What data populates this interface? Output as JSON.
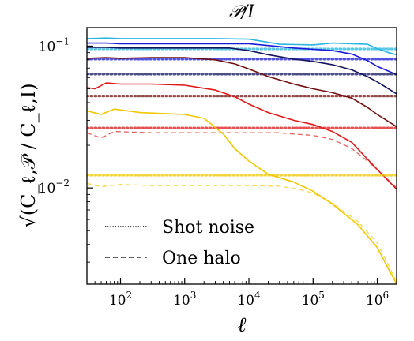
{
  "chart_data": {
    "type": "line",
    "title": "𝒫/I",
    "xlabel": "ℓ",
    "ylabel": "√(C_ℓ,𝒫 / C_ℓ,I)",
    "xscale": "log",
    "yscale": "log",
    "xlim": [
      30,
      2000000
    ],
    "ylim": [
      0.0021,
      0.135
    ],
    "x_ticks": [
      {
        "value": 100,
        "base": "10",
        "exp": "2"
      },
      {
        "value": 1000,
        "base": "10",
        "exp": "3"
      },
      {
        "value": 10000,
        "base": "10",
        "exp": "4"
      },
      {
        "value": 100000,
        "base": "10",
        "exp": "5"
      },
      {
        "value": 1000000,
        "base": "10",
        "exp": "6"
      }
    ],
    "y_ticks": [
      {
        "value": 0.1,
        "base": "10",
        "exp": "−1"
      },
      {
        "value": 0.01,
        "base": "10",
        "exp": "−2"
      }
    ],
    "grid": false,
    "legend": {
      "placement": "lower-left",
      "entries": [
        {
          "label": "Shot noise",
          "style": "dotted"
        },
        {
          "label": "One halo",
          "style": "dashed"
        }
      ]
    },
    "series": [
      {
        "color": "#29b6e0",
        "kind": "total",
        "points": [
          [
            30,
            0.113
          ],
          [
            60,
            0.114
          ],
          [
            100,
            0.113
          ],
          [
            300,
            0.113
          ],
          [
            1000,
            0.113
          ],
          [
            3000,
            0.113
          ],
          [
            10000,
            0.112
          ],
          [
            30000,
            0.103
          ],
          [
            100000,
            0.102
          ],
          [
            200000,
            0.105
          ],
          [
            400000,
            0.104
          ],
          [
            700000,
            0.103
          ],
          [
            1000000,
            0.096
          ],
          [
            1500000,
            0.09
          ],
          [
            2000000,
            0.087
          ]
        ]
      },
      {
        "color": "#29b6e0",
        "kind": "shot_noise",
        "value": 0.0955
      },
      {
        "color": "#1a1ad8",
        "kind": "total",
        "points": [
          [
            30,
            0.105
          ],
          [
            60,
            0.105
          ],
          [
            100,
            0.104
          ],
          [
            300,
            0.104
          ],
          [
            1000,
            0.104
          ],
          [
            3000,
            0.104
          ],
          [
            10000,
            0.104
          ],
          [
            20000,
            0.101
          ],
          [
            50000,
            0.097
          ],
          [
            100000,
            0.095
          ],
          [
            200000,
            0.093
          ],
          [
            400000,
            0.088
          ],
          [
            700000,
            0.079
          ],
          [
            1000000,
            0.072
          ],
          [
            2000000,
            0.063
          ]
        ]
      },
      {
        "color": "#1a1ad8",
        "kind": "shot_noise",
        "value": 0.081
      },
      {
        "color": "#14145e",
        "kind": "total",
        "points": [
          [
            30,
            0.098
          ],
          [
            60,
            0.098
          ],
          [
            100,
            0.097
          ],
          [
            300,
            0.097
          ],
          [
            1000,
            0.097
          ],
          [
            3000,
            0.097
          ],
          [
            5000,
            0.097
          ],
          [
            10000,
            0.093
          ],
          [
            20000,
            0.087
          ],
          [
            50000,
            0.081
          ],
          [
            100000,
            0.078
          ],
          [
            200000,
            0.074
          ],
          [
            400000,
            0.068
          ],
          [
            700000,
            0.061
          ],
          [
            1000000,
            0.056
          ],
          [
            2000000,
            0.046
          ]
        ]
      },
      {
        "color": "#14145e",
        "kind": "shot_noise",
        "value": 0.0635
      },
      {
        "color": "#701010",
        "kind": "total",
        "points": [
          [
            30,
            0.082
          ],
          [
            60,
            0.083
          ],
          [
            100,
            0.082
          ],
          [
            300,
            0.083
          ],
          [
            1000,
            0.083
          ],
          [
            3000,
            0.08
          ],
          [
            6000,
            0.075
          ],
          [
            10000,
            0.069
          ],
          [
            20000,
            0.061
          ],
          [
            50000,
            0.054
          ],
          [
            100000,
            0.05
          ],
          [
            200000,
            0.047
          ],
          [
            400000,
            0.043
          ],
          [
            700000,
            0.037
          ],
          [
            1000000,
            0.033
          ],
          [
            2000000,
            0.027
          ]
        ]
      },
      {
        "color": "#701010",
        "kind": "shot_noise",
        "value": 0.0445
      },
      {
        "color": "#e01818",
        "kind": "total",
        "points": [
          [
            30,
            0.051
          ],
          [
            40,
            0.05
          ],
          [
            60,
            0.055
          ],
          [
            100,
            0.054
          ],
          [
            300,
            0.054
          ],
          [
            1000,
            0.053
          ],
          [
            3000,
            0.049
          ],
          [
            6000,
            0.044
          ],
          [
            10000,
            0.039
          ],
          [
            20000,
            0.034
          ],
          [
            50000,
            0.03
          ],
          [
            100000,
            0.028
          ],
          [
            200000,
            0.025
          ],
          [
            400000,
            0.021
          ],
          [
            700000,
            0.016
          ],
          [
            1000000,
            0.0135
          ],
          [
            2000000,
            0.0098
          ]
        ]
      },
      {
        "color": "#e01818",
        "kind": "shot_noise",
        "value": 0.0265
      },
      {
        "color": "#e01818",
        "kind": "one_halo",
        "points": [
          [
            30,
            0.0245
          ],
          [
            50,
            0.0225
          ],
          [
            80,
            0.025
          ],
          [
            300,
            0.0245
          ],
          [
            1000,
            0.0245
          ],
          [
            3000,
            0.0245
          ],
          [
            10000,
            0.0245
          ],
          [
            30000,
            0.0245
          ],
          [
            50000,
            0.024
          ],
          [
            100000,
            0.0235
          ],
          [
            200000,
            0.022
          ],
          [
            400000,
            0.019
          ],
          [
            700000,
            0.0155
          ],
          [
            1000000,
            0.0135
          ],
          [
            2000000,
            0.01
          ]
        ]
      },
      {
        "color": "#f0c800",
        "kind": "total",
        "points": [
          [
            30,
            0.035
          ],
          [
            50,
            0.033
          ],
          [
            80,
            0.036
          ],
          [
            200,
            0.034
          ],
          [
            1000,
            0.033
          ],
          [
            2000,
            0.031
          ],
          [
            4000,
            0.024
          ],
          [
            6000,
            0.019
          ],
          [
            10000,
            0.0155
          ],
          [
            20000,
            0.0125
          ],
          [
            50000,
            0.011
          ],
          [
            100000,
            0.0095
          ],
          [
            200000,
            0.0077
          ],
          [
            500000,
            0.0055
          ],
          [
            1000000,
            0.0038
          ],
          [
            2000000,
            0.0021
          ]
        ]
      },
      {
        "color": "#f0c800",
        "kind": "shot_noise",
        "value": 0.0123
      },
      {
        "color": "#f0c800",
        "kind": "one_halo",
        "points": [
          [
            30,
            0.0108
          ],
          [
            50,
            0.0102
          ],
          [
            100,
            0.0106
          ],
          [
            300,
            0.0104
          ],
          [
            1000,
            0.0104
          ],
          [
            3000,
            0.0104
          ],
          [
            10000,
            0.0104
          ],
          [
            30000,
            0.0103
          ],
          [
            60000,
            0.0098
          ],
          [
            100000,
            0.0092
          ],
          [
            200000,
            0.0078
          ],
          [
            500000,
            0.0058
          ],
          [
            1000000,
            0.0041
          ],
          [
            2000000,
            0.0022
          ]
        ]
      }
    ]
  }
}
